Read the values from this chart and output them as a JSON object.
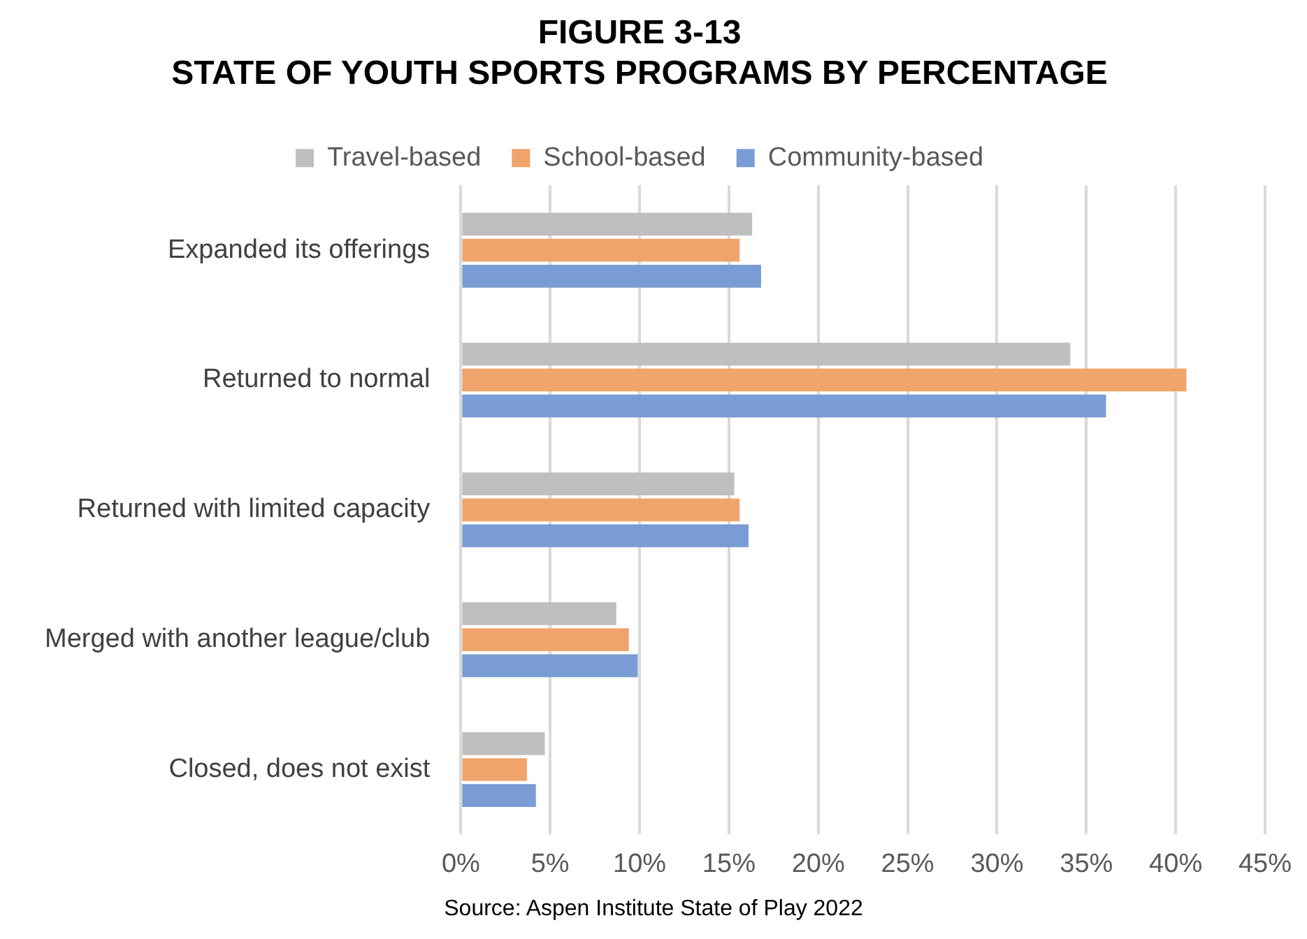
{
  "chart_data": {
    "type": "bar",
    "orientation": "horizontal",
    "title": "FIGURE 3-13\nSTATE OF YOUTH SPORTS PROGRAMS BY PERCENTAGE",
    "categories": [
      "Expanded its offerings",
      "Returned to normal",
      "Returned with limited capacity",
      "Merged with another league/club",
      "Closed, does not exist"
    ],
    "series": [
      {
        "name": "Travel-based",
        "color": "#bfbfbf",
        "values": [
          16.3,
          34.1,
          15.3,
          8.7,
          4.7
        ]
      },
      {
        "name": "School-based",
        "color": "#f0a46c",
        "values": [
          15.6,
          40.6,
          15.6,
          9.4,
          3.7
        ]
      },
      {
        "name": "Community-based",
        "color": "#7a9cd4",
        "values": [
          16.8,
          36.1,
          16.1,
          9.9,
          4.2
        ]
      }
    ],
    "xlim": [
      0,
      45
    ],
    "xticks": [
      {
        "value": 0,
        "label": "0%"
      },
      {
        "value": 5,
        "label": "5%"
      },
      {
        "value": 10,
        "label": "10%"
      },
      {
        "value": 15,
        "label": "15%"
      },
      {
        "value": 20,
        "label": "20%"
      },
      {
        "value": 25,
        "label": "25%"
      },
      {
        "value": 30,
        "label": "30%"
      },
      {
        "value": 35,
        "label": "35%"
      },
      {
        "value": 40,
        "label": "40%"
      },
      {
        "value": 45,
        "label": "45%"
      }
    ],
    "grid": "x",
    "legend": "top",
    "annotations": [
      "Source: Aspen Institute State of Play 2022"
    ]
  }
}
